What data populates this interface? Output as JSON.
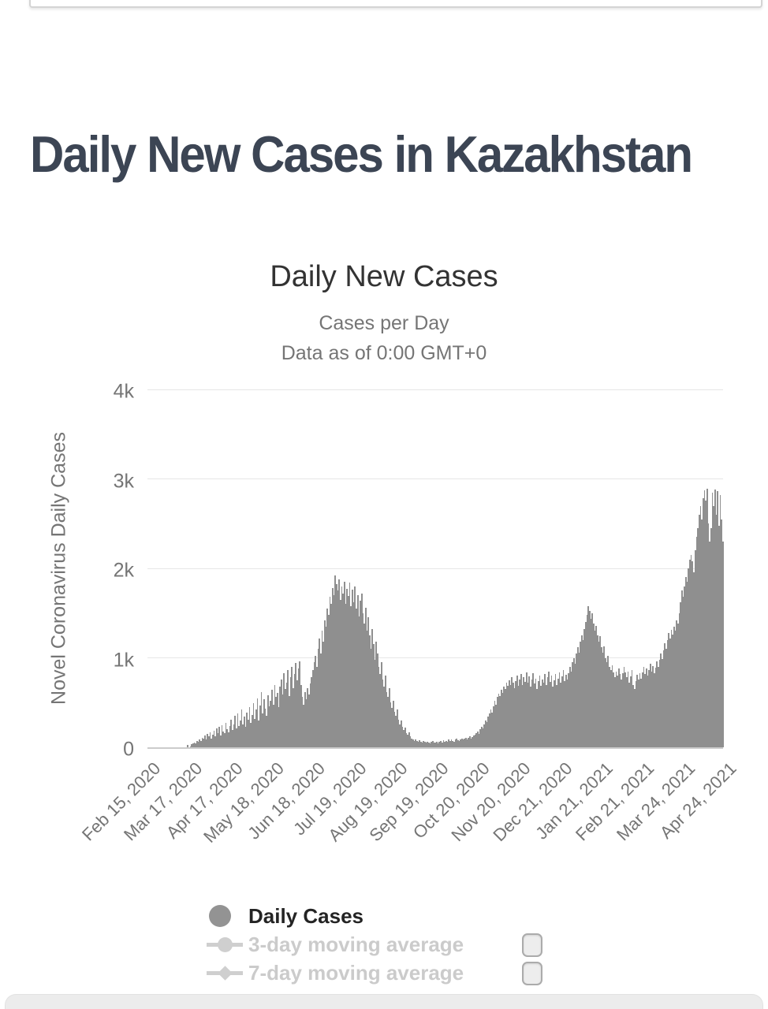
{
  "page": {
    "heading": "Daily New Cases in Kazakhstan"
  },
  "chart": {
    "title": "Daily New Cases",
    "subtitle1": "Cases per Day",
    "subtitle2": "Data as of 0:00 GMT+0",
    "y_axis_title": "Novel Coronavirus Daily Cases",
    "y_ticks": [
      "4k",
      "3k",
      "2k",
      "1k",
      "0"
    ],
    "x_ticks": [
      "Feb 15, 2020",
      "Mar 17, 2020",
      "Apr 17, 2020",
      "May 18, 2020",
      "Jun 18, 2020",
      "Jul 19, 2020",
      "Aug 19, 2020",
      "Sep 19, 2020",
      "Oct 20, 2020",
      "Nov 20, 2020",
      "Dec 21, 2020",
      "Jan 21, 2021",
      "Feb 21, 2021",
      "Mar 24, 2021",
      "Apr 24, 2021"
    ]
  },
  "legend": {
    "daily_cases_label": "Daily Cases",
    "ma3_label": "3-day moving average",
    "ma7_label": "7-day moving average"
  },
  "colors": {
    "bar": "#8f8f8f",
    "grid": "#e6e6e6",
    "axis": "#cccccc",
    "muted_text": "#757575",
    "title_text": "#333333",
    "heading_text": "#3c4554",
    "legend_active_text": "#242424",
    "legend_disabled": "#cbcbcb",
    "marker_active": "#939393",
    "marker_disabled": "#cfcfcf",
    "frame_border": "#d4d4d4"
  },
  "chart_data": {
    "type": "bar",
    "title": "Daily New Cases",
    "subtitle": "Cases per Day — Data as of 0:00 GMT+0",
    "xlabel": "",
    "ylabel": "Novel Coronavirus Daily Cases",
    "ylim": [
      0,
      4000
    ],
    "grid": true,
    "legend_position": "bottom",
    "x_start_date": "Feb 15, 2020",
    "x_end_date": "Apr 26, 2021",
    "x_tick_labels": [
      "Feb 15, 2020",
      "Mar 17, 2020",
      "Apr 17, 2020",
      "May 18, 2020",
      "Jun 18, 2020",
      "Jul 19, 2020",
      "Aug 19, 2020",
      "Sep 19, 2020",
      "Oct 20, 2020",
      "Nov 20, 2020",
      "Dec 21, 2020",
      "Jan 21, 2021",
      "Feb 21, 2021",
      "Mar 24, 2021",
      "Apr 24, 2021"
    ],
    "series_name": "Daily Cases",
    "values": [
      0,
      0,
      0,
      0,
      0,
      0,
      0,
      0,
      0,
      0,
      0,
      0,
      0,
      0,
      0,
      0,
      0,
      0,
      0,
      0,
      0,
      0,
      0,
      0,
      0,
      0,
      0,
      0,
      0,
      0,
      25,
      0,
      10,
      35,
      40,
      55,
      45,
      70,
      60,
      90,
      75,
      110,
      95,
      130,
      85,
      150,
      120,
      170,
      100,
      140,
      185,
      125,
      210,
      160,
      230,
      135,
      250,
      180,
      155,
      270,
      200,
      165,
      235,
      310,
      190,
      260,
      350,
      215,
      380,
      240,
      300,
      420,
      260,
      340,
      230,
      390,
      310,
      450,
      270,
      360,
      490,
      320,
      420,
      550,
      300,
      470,
      620,
      380,
      540,
      430,
      350,
      580,
      460,
      520,
      640,
      480,
      700,
      560,
      610,
      450,
      680,
      760,
      590,
      830,
      650,
      720,
      860,
      570,
      780,
      900,
      660,
      820,
      940,
      750,
      880,
      960,
      700,
      560,
      480,
      620,
      540,
      660,
      590,
      710,
      780,
      860,
      950,
      1020,
      900,
      1100,
      1220,
      1050,
      1300,
      1180,
      1420,
      1350,
      1550,
      1480,
      1680,
      1600,
      1780,
      1700,
      1920,
      1820,
      1750,
      1880,
      1650,
      1800,
      1720,
      1850,
      1600,
      1770,
      1690,
      1840,
      1580,
      1760,
      1620,
      1800,
      1550,
      1700,
      1460,
      1640,
      1720,
      1500,
      1380,
      1560,
      1300,
      1450,
      1250,
      1100,
      1320,
      1150,
      980,
      1180,
      1050,
      900,
      820,
      950,
      760,
      680,
      800,
      620,
      560,
      660,
      500,
      440,
      520,
      400,
      350,
      420,
      310,
      260,
      300,
      230,
      190,
      220,
      160,
      140,
      170,
      120,
      100,
      90,
      75,
      85,
      70,
      60,
      80,
      65,
      55,
      70,
      60,
      50,
      65,
      55,
      45,
      60,
      70,
      55,
      50,
      65,
      45,
      60,
      70,
      55,
      80,
      65,
      75,
      60,
      85,
      70,
      90,
      75,
      65,
      85,
      95,
      80,
      70,
      90,
      100,
      85,
      95,
      110,
      90,
      105,
      120,
      100,
      115,
      130,
      145,
      160,
      180,
      150,
      200,
      230,
      210,
      260,
      300,
      280,
      340,
      380,
      420,
      390,
      460,
      520,
      480,
      560,
      600,
      570,
      640,
      610,
      680,
      650,
      720,
      690,
      750,
      700,
      780,
      720,
      660,
      740,
      800,
      690,
      760,
      820,
      700,
      780,
      730,
      840,
      720,
      790,
      680,
      760,
      830,
      710,
      770,
      650,
      740,
      800,
      690,
      760,
      720,
      820,
      700,
      780,
      850,
      730,
      800,
      680,
      750,
      820,
      700,
      770,
      840,
      720,
      790,
      860,
      740,
      810,
      760,
      830,
      900,
      850,
      950,
      1000,
      930,
      1050,
      1120,
      1060,
      1180,
      1250,
      1200,
      1320,
      1400,
      1480,
      1580,
      1520,
      1440,
      1500,
      1380,
      1300,
      1360,
      1250,
      1180,
      1240,
      1120,
      1060,
      1130,
      1000,
      950,
      1020,
      900,
      860,
      920,
      840,
      780,
      850,
      800,
      880,
      820,
      760,
      830,
      900,
      840,
      780,
      850,
      720,
      790,
      860,
      700,
      650,
      740,
      810,
      760,
      830,
      770,
      840,
      900,
      820,
      880,
      800,
      860,
      930,
      850,
      910,
      830,
      890,
      960,
      900,
      980,
      1050,
      990,
      1080,
      1160,
      1100,
      1200,
      1280,
      1220,
      1310,
      1260,
      1350,
      1300,
      1420,
      1380,
      1500,
      1620,
      1750,
      1680,
      1800,
      1900,
      1850,
      2000,
      2100,
      2150,
      2080,
      1960,
      2200,
      2350,
      2450,
      2600,
      2700,
      2550,
      2780,
      2870,
      2760,
      2890,
      2500,
      2300,
      2450,
      2850,
      2700,
      2880,
      2600,
      2860,
      2480,
      2820,
      2550,
      2300
    ],
    "disabled_series": [
      "3-day moving average",
      "7-day moving average"
    ]
  }
}
